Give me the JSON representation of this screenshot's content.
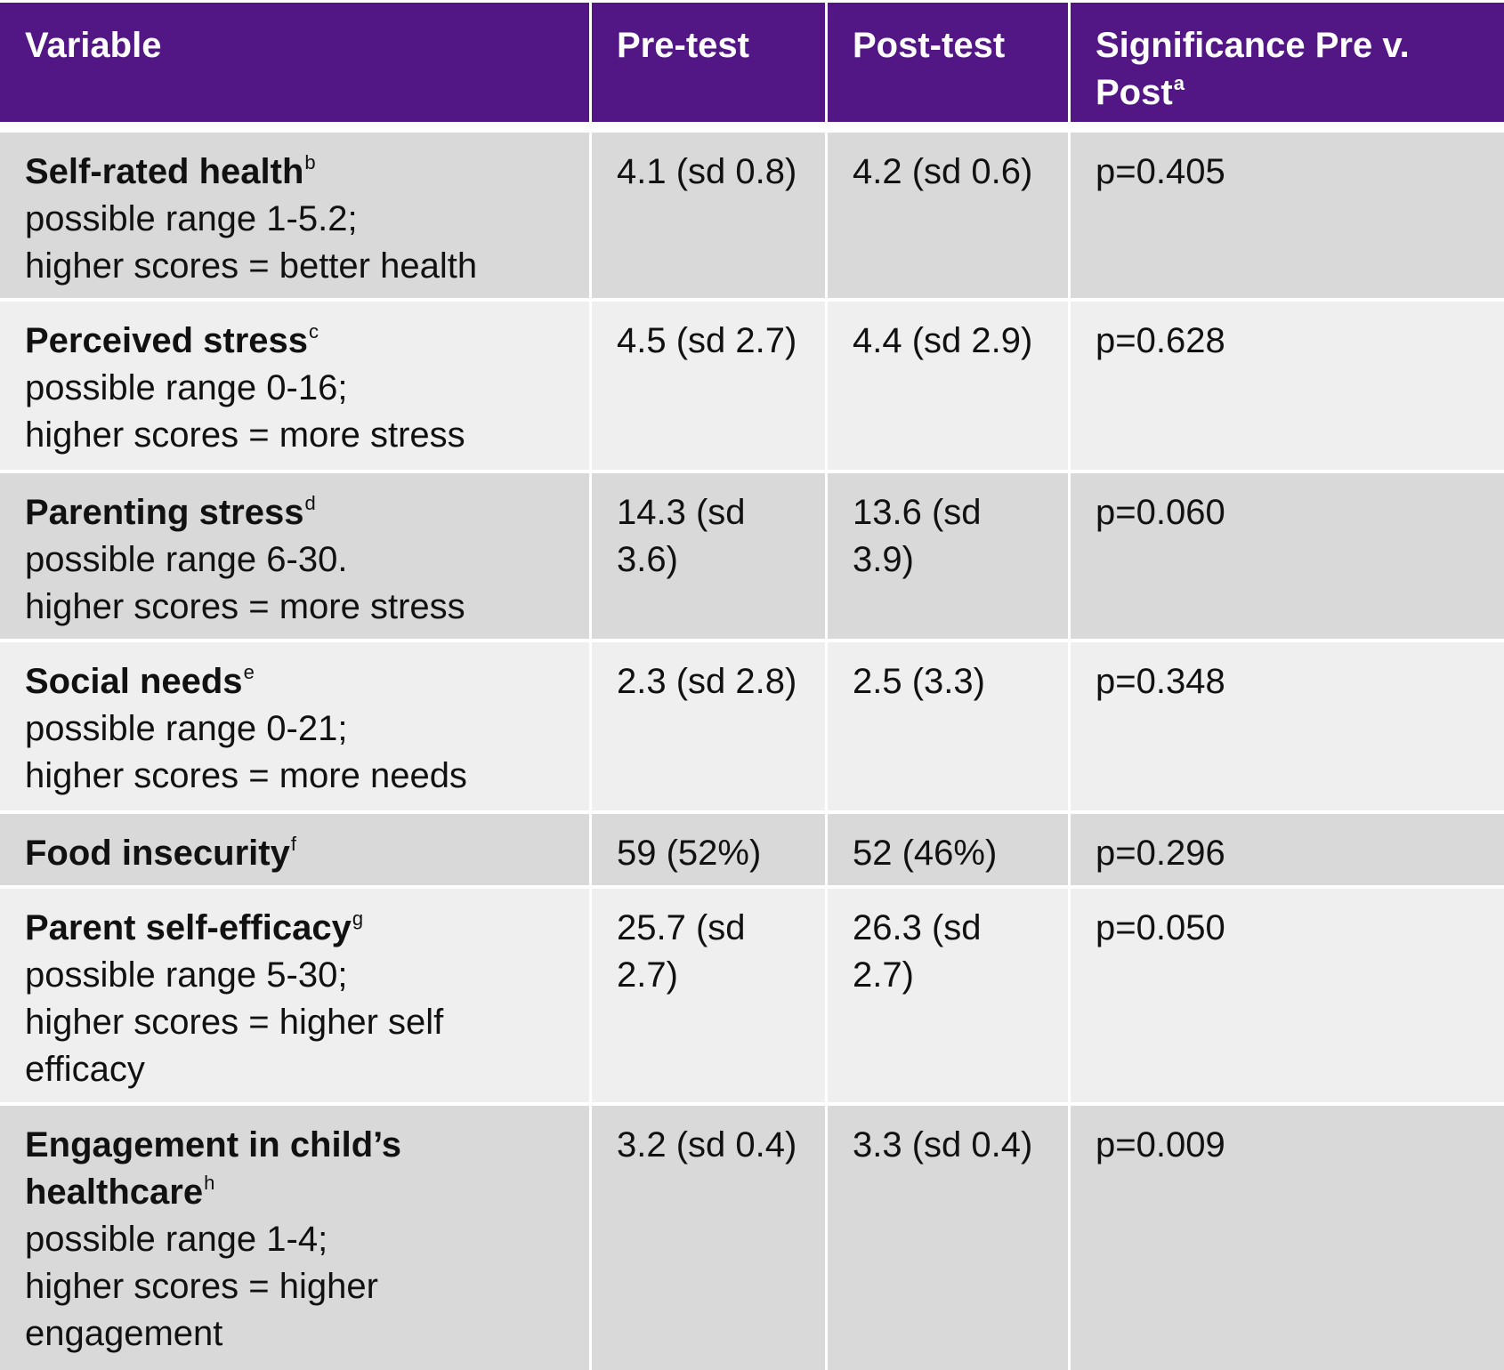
{
  "header": {
    "variable": "Variable",
    "pre": "Pre-test",
    "post": "Post-test",
    "sig_line1": "Significance Pre v.",
    "sig_line2": "Post",
    "sig_sup": "a"
  },
  "rows": [
    {
      "name": "Self-rated health",
      "sup": "b",
      "desc1": "possible range 1-5.2;",
      "desc2": "higher scores = better health",
      "desc3": "",
      "pre1": "4.1 (sd 0.8)",
      "pre2": "",
      "post1": "4.2 (sd 0.6)",
      "post2": "",
      "sig": "p=0.405"
    },
    {
      "name": "Perceived stress",
      "sup": "c",
      "desc1": "possible range 0-16;",
      "desc2": "higher scores = more stress",
      "desc3": "",
      "pre1": "4.5 (sd 2.7)",
      "pre2": "",
      "post1": "4.4 (sd 2.9)",
      "post2": "",
      "sig": "p=0.628"
    },
    {
      "name": "Parenting stress",
      "sup": "d",
      "desc1": "possible range 6-30.",
      "desc2": "higher scores = more stress",
      "desc3": "",
      "pre1": "14.3 (sd",
      "pre2": "3.6)",
      "post1": "13.6 (sd",
      "post2": "3.9)",
      "sig": "p=0.060"
    },
    {
      "name": "Social needs",
      "sup": "e",
      "desc1": "possible range 0-21;",
      "desc2": "higher scores = more needs",
      "desc3": "",
      "pre1": "2.3 (sd 2.8)",
      "pre2": "",
      "post1": "2.5 (3.3)",
      "post2": "",
      "sig": "p=0.348"
    },
    {
      "name": "Food insecurity",
      "sup": "f",
      "desc1": "",
      "desc2": "",
      "desc3": "",
      "pre1": "59 (52%)",
      "pre2": "",
      "post1": "52 (46%)",
      "post2": "",
      "sig": "p=0.296"
    },
    {
      "name": "Parent self-efficacy",
      "sup": "g",
      "desc1": "possible range 5-30;",
      "desc2": "higher scores = higher self",
      "desc3": "efficacy",
      "pre1": "25.7 (sd",
      "pre2": "2.7)",
      "post1": "26.3 (sd",
      "post2": "2.7)",
      "sig": "p=0.050"
    },
    {
      "name_line1": "Engagement in child’s",
      "name": "healthcare",
      "sup": "h",
      "desc1": "possible range 1-4;",
      "desc2": "higher scores = higher",
      "desc3": "engagement",
      "pre1": "3.2 (sd 0.4)",
      "pre2": "",
      "post1": "3.3 (sd 0.4)",
      "post2": "",
      "sig": "p=0.009"
    }
  ]
}
